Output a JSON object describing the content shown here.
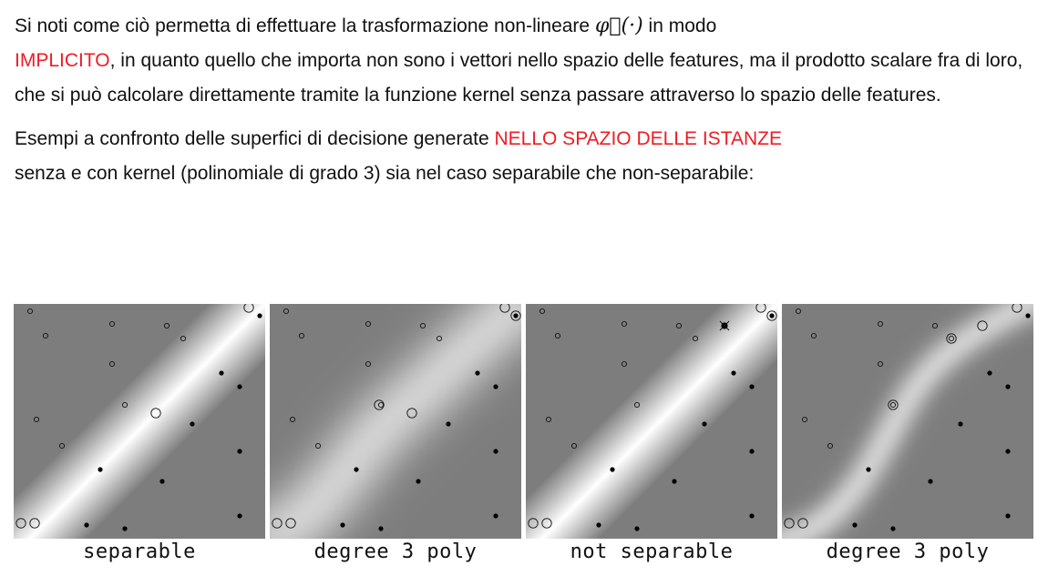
{
  "paragraph1": {
    "before_math": "Si noti come ciò permetta di effettuare la trasformazione non-lineare ",
    "math": "φ⃗(·)",
    "after_math": " in modo",
    "highlight": "IMPLICITO",
    "rest": ", in quanto quello che importa non sono i vettori nello spazio delle features, ma il prodotto scalare fra di loro, che si può calcolare direttamente tramite la funzione kernel senza passare attraverso lo spazio delle features."
  },
  "paragraph2": {
    "before": "Esempi a confronto delle superfici di decisione generate ",
    "highlight": "NELLO SPAZIO DELLE ISTANZE",
    "after": " senza e con kernel (polinomiale di grado 3) sia nel caso separabile che non-separabile:"
  },
  "colors": {
    "highlight": "#ee1c25",
    "panel_background": "#7d7d7d",
    "margin_center": "#ffffff"
  },
  "panels": [
    {
      "caption": "separable"
    },
    {
      "caption": "degree 3 poly"
    },
    {
      "caption": "not separable"
    },
    {
      "caption": "degree 3 poly"
    }
  ]
}
